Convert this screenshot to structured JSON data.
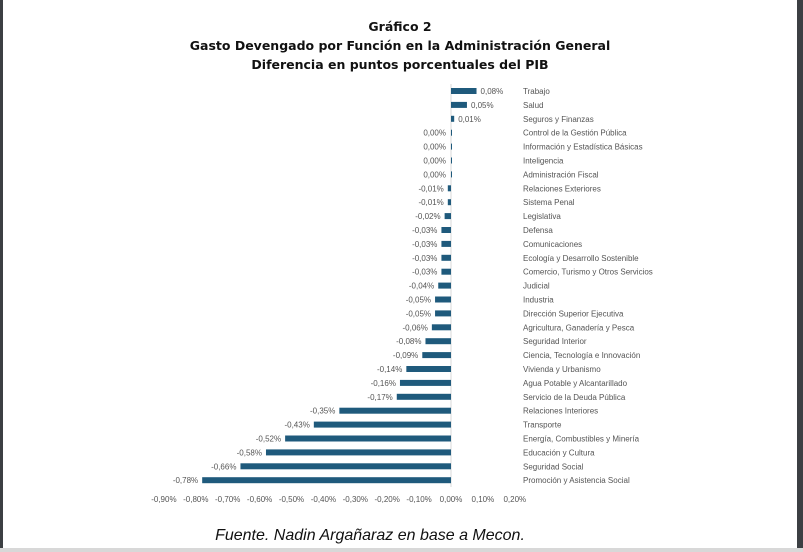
{
  "chart_data": {
    "type": "bar",
    "orientation": "horizontal",
    "title": "Gráfico 2",
    "subtitle_lines": [
      "Gasto Devengado por Función en la Administración General",
      "Diferencia en puntos porcentuales del PIB"
    ],
    "xlabel": "",
    "ylabel": "",
    "xlim": [
      -0.9,
      0.2
    ],
    "x_ticks": [
      "-0,90%",
      "-0,80%",
      "-0,70%",
      "-0,60%",
      "-0,50%",
      "-0,40%",
      "-0,30%",
      "-0,20%",
      "-0,10%",
      "0,00%",
      "0,10%",
      "0,20%"
    ],
    "x_tick_values": [
      -0.9,
      -0.8,
      -0.7,
      -0.6,
      -0.5,
      -0.4,
      -0.3,
      -0.2,
      -0.1,
      0.0,
      0.1,
      0.2
    ],
    "grid": false,
    "bar_color": "#1f5a7c",
    "categories": [
      "Trabajo",
      "Salud",
      "Seguros y Finanzas",
      "Control de la Gestión Pública",
      "Información y Estadística Básicas",
      "Inteligencia",
      "Administración Fiscal",
      "Relaciones Exteriores",
      "Sistema Penal",
      "Legislativa",
      "Defensa",
      "Comunicaciones",
      "Ecología y Desarrollo Sostenible",
      "Comercio, Turismo y Otros Servicios",
      "Judicial",
      "Industria",
      "Dirección Superior Ejecutiva",
      "Agricultura, Ganadería y Pesca",
      "Seguridad Interior",
      "Ciencia, Tecnología e Innovación",
      "Vivienda y Urbanismo",
      "Agua Potable y Alcantarillado",
      "Servicio de la Deuda Pública",
      "Relaciones Interiores",
      "Transporte",
      "Energía, Combustibles y Minería",
      "Educación y Cultura",
      "Seguridad Social",
      "Promoción y Asistencia Social"
    ],
    "values": [
      0.08,
      0.05,
      0.01,
      0.0,
      0.0,
      0.0,
      0.0,
      -0.01,
      -0.01,
      -0.02,
      -0.03,
      -0.03,
      -0.03,
      -0.03,
      -0.04,
      -0.05,
      -0.05,
      -0.06,
      -0.08,
      -0.09,
      -0.14,
      -0.16,
      -0.17,
      -0.35,
      -0.43,
      -0.52,
      -0.58,
      -0.66,
      -0.78
    ],
    "value_labels": [
      "0,08%",
      "0,05%",
      "0,01%",
      "0,00%",
      "0,00%",
      "0,00%",
      "0,00%",
      "-0,01%",
      "-0,01%",
      "-0,02%",
      "-0,03%",
      "-0,03%",
      "-0,03%",
      "-0,03%",
      "-0,04%",
      "-0,05%",
      "-0,05%",
      "-0,06%",
      "-0,08%",
      "-0,09%",
      "-0,14%",
      "-0,16%",
      "-0,17%",
      "-0,35%",
      "-0,43%",
      "-0,52%",
      "-0,58%",
      "-0,66%",
      "-0,78%"
    ]
  },
  "footer": {
    "source": "Fuente. Nadin Argañaraz en base a Mecon."
  }
}
